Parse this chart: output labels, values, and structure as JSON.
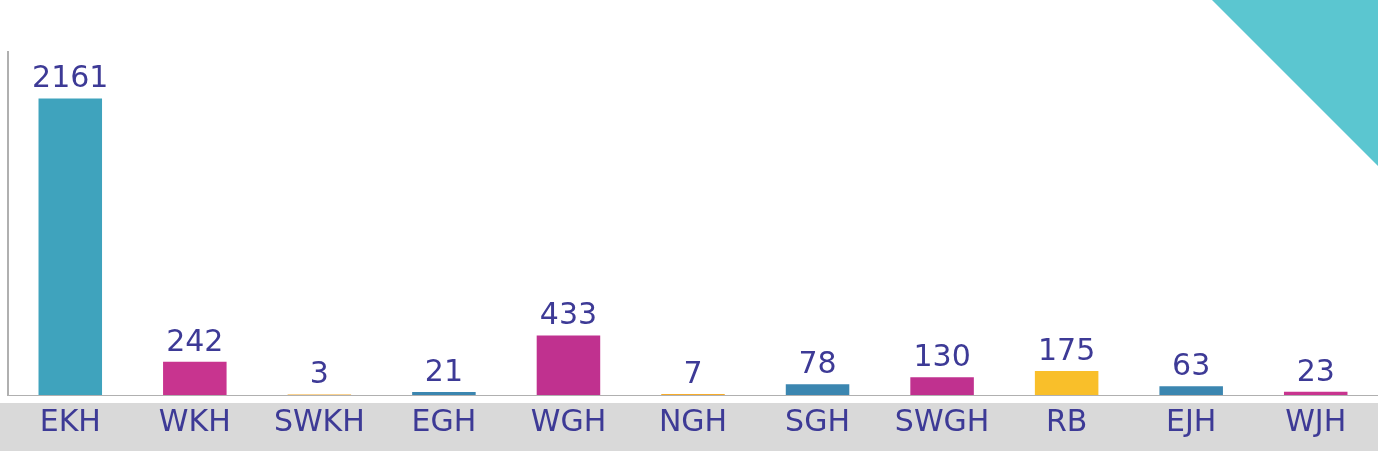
{
  "chart_data": {
    "type": "bar",
    "categories": [
      "EKH",
      "WKH",
      "SWKH",
      "EGH",
      "WGH",
      "NGH",
      "SGH",
      "SWGH",
      "RB",
      "EJH",
      "WJH"
    ],
    "values": [
      2161,
      242,
      3,
      21,
      433,
      7,
      78,
      130,
      175,
      63,
      23
    ],
    "colors": [
      "#3fa3bd",
      "#c8348f",
      "#f5a623",
      "#3b86b0",
      "#c0318f",
      "#f7ac2a",
      "#3b86b0",
      "#c0318f",
      "#f9bf2a",
      "#3b86b0",
      "#c8348f"
    ],
    "data_labels": true,
    "grid": false,
    "legend": false
  }
}
